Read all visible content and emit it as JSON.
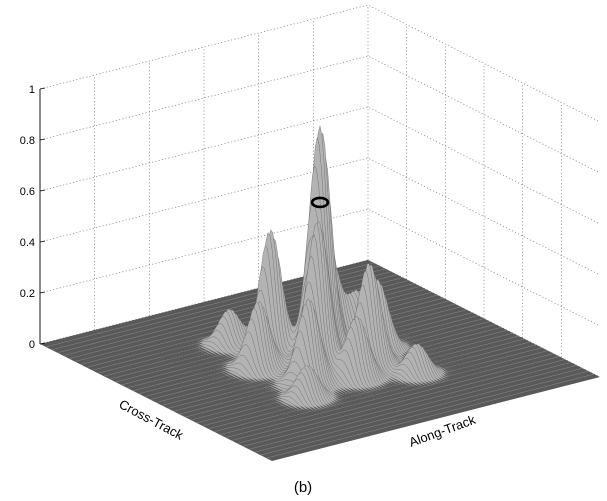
{
  "chart_data": {
    "type": "surface",
    "caption": "(b)",
    "xlabel": "Cross-Track",
    "ylabel": "Along-Track",
    "zlabel": "",
    "zlim": [
      0,
      1
    ],
    "z_ticks": [
      "0",
      "0.2",
      "0.4",
      "0.6",
      "0.8",
      "1"
    ],
    "grid": true,
    "colors": {
      "surface": "#b3b3b3",
      "floor": "#595959",
      "marker": "#000000"
    },
    "peaks": [
      {
        "x": 0.5,
        "y": 0.5,
        "z": 0.88
      },
      {
        "x": 0.44,
        "y": 0.55,
        "z": 0.56
      },
      {
        "x": 0.56,
        "y": 0.45,
        "z": 0.55
      },
      {
        "x": 0.4,
        "y": 0.42,
        "z": 0.48
      },
      {
        "x": 0.6,
        "y": 0.58,
        "z": 0.4
      },
      {
        "x": 0.36,
        "y": 0.62,
        "z": 0.36
      },
      {
        "x": 0.62,
        "y": 0.38,
        "z": 0.33
      },
      {
        "x": 0.32,
        "y": 0.48,
        "z": 0.3
      },
      {
        "x": 0.52,
        "y": 0.66,
        "z": 0.27
      },
      {
        "x": 0.66,
        "y": 0.5,
        "z": 0.24
      },
      {
        "x": 0.46,
        "y": 0.34,
        "z": 0.26
      },
      {
        "x": 0.28,
        "y": 0.38,
        "z": 0.14
      },
      {
        "x": 0.72,
        "y": 0.64,
        "z": 0.12
      },
      {
        "x": 0.38,
        "y": 0.7,
        "z": 0.15
      },
      {
        "x": 0.7,
        "y": 0.32,
        "z": 0.13
      }
    ],
    "marker": {
      "x": 0.5,
      "y": 0.5,
      "z": 0.62
    }
  }
}
